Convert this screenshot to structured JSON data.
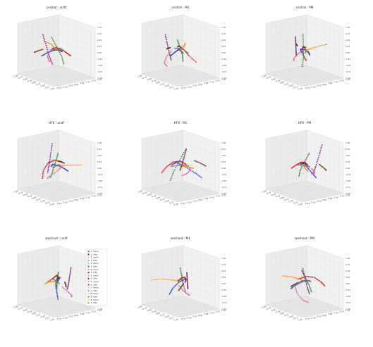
{
  "chart_data": {
    "type": "scatter",
    "layout": "3x3 grid of 3D trajectory scatter plots",
    "panels": [
      {
        "title": "control : undf"
      },
      {
        "title": "control : M1"
      },
      {
        "title": "control : PM"
      },
      {
        "title": "HFS : undf"
      },
      {
        "title": "HFS : M1"
      },
      {
        "title": "HFS : PM"
      },
      {
        "title": "washout : undf",
        "legend": true
      },
      {
        "title": "washout : M1"
      },
      {
        "title": "washout : PM"
      }
    ],
    "z_ticks": [
      "1.00",
      "0.75",
      "0.50",
      "0.25",
      "0.00",
      "-0.25",
      "-0.50",
      "-0.75",
      "-1.00"
    ],
    "x_ticks": [
      "-1.00",
      "-0.75",
      "-0.50",
      "-0.25",
      "0.00",
      "0.25",
      "0.50",
      "0.75",
      "1.00"
    ],
    "y_ticks": [
      "1.00",
      "0.75",
      "0.50",
      "0.25",
      "0.00",
      "-0.25",
      "-0.50",
      "-0.75"
    ],
    "axis_limits": {
      "x": [
        -1,
        1
      ],
      "y": [
        -1,
        1
      ],
      "z": [
        -1,
        1
      ]
    },
    "grid": true,
    "legend_placement": "right of washout : undf panel",
    "legend": [
      {
        "label": "1. early",
        "color": "#1f77b4"
      },
      {
        "label": "1. late",
        "color": "#17256b"
      },
      {
        "label": "2. early",
        "color": "#ffbf80"
      },
      {
        "label": "2. late",
        "color": "#ff8c00"
      },
      {
        "label": "3. early",
        "color": "#8fd18f"
      },
      {
        "label": "3. late",
        "color": "#1a7a1a"
      },
      {
        "label": "4. early",
        "color": "#ff8080"
      },
      {
        "label": "4. late",
        "color": "#cc0000"
      },
      {
        "label": "5. early",
        "color": "#c49bd6"
      },
      {
        "label": "5. late",
        "color": "#6a0f6a"
      },
      {
        "label": "6. early",
        "color": "#c8a080"
      },
      {
        "label": "6. late",
        "color": "#6b3a1a"
      },
      {
        "label": "7. early",
        "color": "#ffc0d8"
      },
      {
        "label": "7. late",
        "color": "#e06aa0"
      },
      {
        "label": "8. early",
        "color": "#cfcfcf"
      },
      {
        "label": "8. late",
        "color": "#7a7a7a"
      },
      {
        "label": "9. early",
        "color": "#dcdc8a"
      },
      {
        "label": "9. late",
        "color": "#9a9a20"
      }
    ],
    "trajectory_series": [
      {
        "color": "#cc0000",
        "points": [
          [
            -0.2,
            0.1,
            0.1
          ],
          [
            0.05,
            0.05,
            0.2
          ],
          [
            0.3,
            -0.1,
            0.15
          ],
          [
            0.5,
            -0.3,
            -0.05
          ],
          [
            0.6,
            -0.6,
            -0.3
          ]
        ]
      },
      {
        "color": "#1f2fcc",
        "points": [
          [
            -0.6,
            0.5,
            -0.4
          ],
          [
            -0.4,
            0.3,
            -0.2
          ],
          [
            -0.1,
            0.1,
            0.0
          ],
          [
            0.2,
            0.0,
            0.1
          ],
          [
            0.3,
            -0.2,
            0.0
          ]
        ]
      },
      {
        "color": "#1a7a1a",
        "points": [
          [
            0.0,
            0.2,
            0.6
          ],
          [
            0.05,
            0.0,
            0.2
          ],
          [
            0.1,
            -0.2,
            -0.2
          ],
          [
            0.2,
            -0.3,
            -0.6
          ]
        ]
      },
      {
        "color": "#ff8c00",
        "points": [
          [
            -0.8,
            0.6,
            0.1
          ],
          [
            -0.5,
            0.3,
            0.1
          ],
          [
            -0.2,
            0.1,
            0.05
          ],
          [
            0.0,
            0.0,
            0.0
          ]
        ]
      },
      {
        "color": "#6a0f6a",
        "points": [
          [
            0.6,
            0.2,
            0.7
          ],
          [
            0.55,
            0.1,
            0.3
          ],
          [
            0.5,
            0.0,
            -0.1
          ],
          [
            0.45,
            -0.1,
            -0.4
          ]
        ]
      },
      {
        "color": "#e06aa0",
        "points": [
          [
            0.3,
            0.3,
            -0.1
          ],
          [
            0.5,
            0.2,
            -0.3
          ],
          [
            0.6,
            0.0,
            -0.5
          ],
          [
            0.5,
            -0.2,
            -0.6
          ]
        ]
      },
      {
        "color": "#7a7a7a",
        "points": [
          [
            -0.3,
            -0.2,
            0.0
          ],
          [
            -0.1,
            0.0,
            0.05
          ],
          [
            0.1,
            0.1,
            0.05
          ],
          [
            0.25,
            0.2,
            0.0
          ]
        ]
      },
      {
        "color": "#6b3a1a",
        "points": [
          [
            0.6,
            -0.1,
            0.1
          ],
          [
            0.8,
            0.0,
            0.0
          ],
          [
            0.95,
            0.1,
            -0.1
          ]
        ]
      }
    ]
  }
}
